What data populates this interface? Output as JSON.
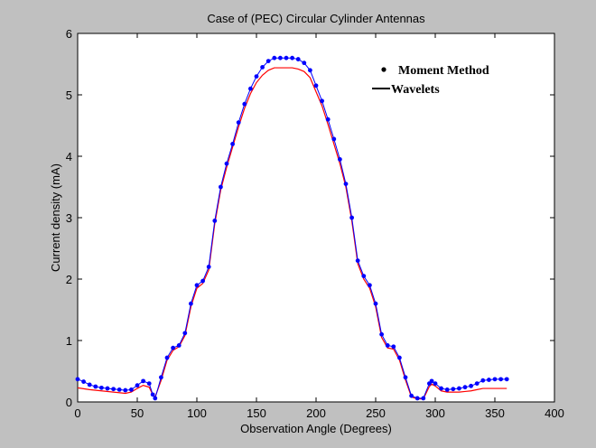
{
  "chart_data": {
    "type": "line",
    "title": "Case of (PEC) Circular Cylinder Antennas",
    "xlabel": "Observation Angle (Degrees)",
    "ylabel": "Current density (mA)",
    "xlim": [
      0,
      400
    ],
    "ylim": [
      0,
      6
    ],
    "xticks": [
      0,
      50,
      100,
      150,
      200,
      250,
      300,
      350,
      400
    ],
    "yticks": [
      0,
      1,
      2,
      3,
      4,
      5,
      6
    ],
    "grid": false,
    "legend_position": "top-right",
    "series": [
      {
        "name": "Moment Method",
        "style": "markers",
        "color": "#0000ff",
        "x": [
          0,
          5,
          10,
          15,
          20,
          25,
          30,
          35,
          40,
          45,
          50,
          55,
          60,
          63,
          65,
          70,
          75,
          80,
          85,
          90,
          95,
          100,
          105,
          110,
          115,
          120,
          125,
          130,
          135,
          140,
          145,
          150,
          155,
          160,
          165,
          170,
          175,
          180,
          185,
          190,
          195,
          200,
          205,
          210,
          215,
          220,
          225,
          230,
          235,
          240,
          245,
          250,
          255,
          260,
          265,
          270,
          275,
          280,
          285,
          290,
          295,
          297,
          300,
          305,
          310,
          315,
          320,
          325,
          330,
          335,
          340,
          345,
          350,
          355,
          360
        ],
        "y": [
          0.37,
          0.33,
          0.28,
          0.25,
          0.23,
          0.22,
          0.21,
          0.2,
          0.19,
          0.2,
          0.27,
          0.34,
          0.3,
          0.12,
          0.06,
          0.4,
          0.72,
          0.88,
          0.92,
          1.12,
          1.6,
          1.9,
          1.97,
          2.2,
          2.95,
          3.5,
          3.88,
          4.2,
          4.55,
          4.85,
          5.1,
          5.3,
          5.45,
          5.55,
          5.6,
          5.6,
          5.6,
          5.6,
          5.58,
          5.52,
          5.4,
          5.15,
          4.9,
          4.6,
          4.28,
          3.95,
          3.55,
          3.0,
          2.3,
          2.05,
          1.9,
          1.6,
          1.1,
          0.92,
          0.9,
          0.72,
          0.4,
          0.1,
          0.06,
          0.06,
          0.3,
          0.34,
          0.3,
          0.22,
          0.2,
          0.21,
          0.22,
          0.24,
          0.26,
          0.3,
          0.35,
          0.36,
          0.37,
          0.37,
          0.37
        ]
      },
      {
        "name": "Wavelets",
        "style": "line",
        "color": "#ff0000",
        "x": [
          0,
          10,
          20,
          30,
          40,
          45,
          50,
          55,
          60,
          63,
          65,
          70,
          75,
          80,
          85,
          90,
          95,
          100,
          105,
          110,
          115,
          120,
          125,
          130,
          135,
          140,
          145,
          150,
          155,
          160,
          165,
          170,
          175,
          180,
          185,
          190,
          195,
          200,
          205,
          210,
          215,
          220,
          225,
          230,
          235,
          240,
          245,
          250,
          255,
          260,
          265,
          270,
          275,
          280,
          285,
          290,
          295,
          297,
          300,
          305,
          310,
          315,
          320,
          325,
          330,
          335,
          340,
          345,
          350,
          355,
          360
        ],
        "y": [
          0.23,
          0.2,
          0.18,
          0.16,
          0.14,
          0.16,
          0.22,
          0.27,
          0.24,
          0.12,
          0.08,
          0.35,
          0.68,
          0.84,
          0.9,
          1.08,
          1.55,
          1.85,
          1.93,
          2.15,
          2.9,
          3.45,
          3.82,
          4.15,
          4.48,
          4.78,
          5.02,
          5.2,
          5.32,
          5.4,
          5.44,
          5.44,
          5.44,
          5.44,
          5.42,
          5.38,
          5.28,
          5.05,
          4.82,
          4.52,
          4.2,
          3.88,
          3.5,
          2.95,
          2.25,
          2.0,
          1.85,
          1.55,
          1.05,
          0.88,
          0.86,
          0.68,
          0.36,
          0.08,
          0.05,
          0.05,
          0.25,
          0.29,
          0.26,
          0.18,
          0.16,
          0.16,
          0.16,
          0.17,
          0.18,
          0.2,
          0.22,
          0.22,
          0.22,
          0.22,
          0.22
        ]
      }
    ]
  }
}
